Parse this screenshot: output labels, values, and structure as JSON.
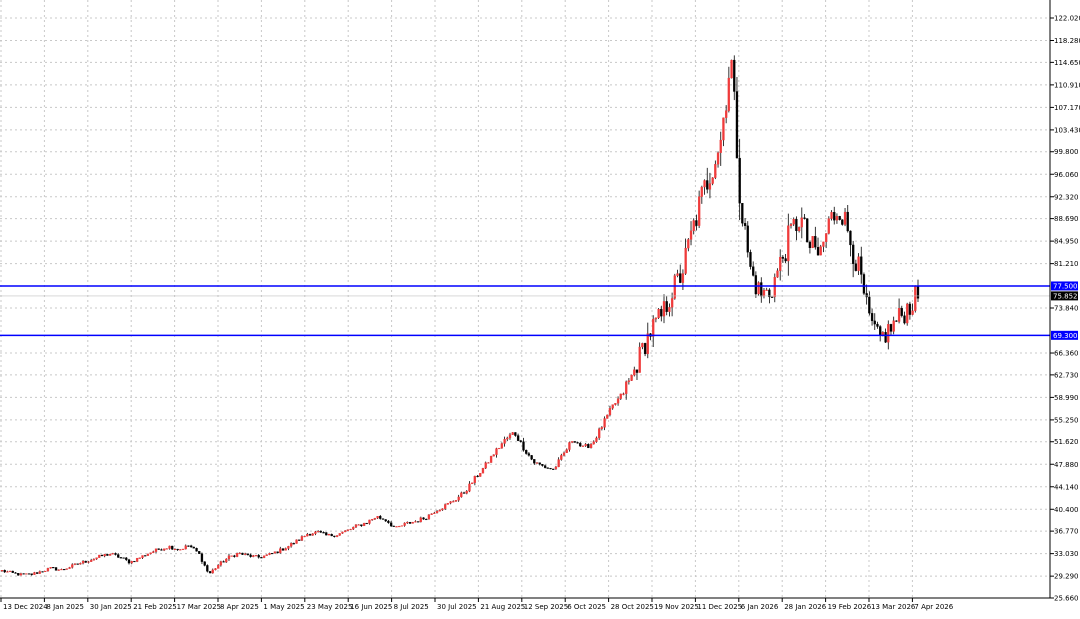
{
  "chart_data": {
    "type": "candlestick",
    "title": "",
    "xlabel": "",
    "ylabel": "",
    "ylim": [
      25.66,
      122.02
    ],
    "grid": true,
    "colors": {
      "bull": "#ef3b3b",
      "bear": "#000000",
      "level_line": "#0000ff",
      "level_label_bg": "#0000ff",
      "current_label_bg": "#000000",
      "grid": "#c8c8c8"
    },
    "y_ticks": [
      "122.020",
      "118.280",
      "114.650",
      "110.910",
      "107.170",
      "103.430",
      "99.800",
      "96.060",
      "92.320",
      "88.690",
      "84.950",
      "81.210",
      "73.840",
      "66.360",
      "62.730",
      "58.990",
      "55.250",
      "51.620",
      "47.880",
      "44.140",
      "40.400",
      "36.770",
      "33.030",
      "29.290",
      "25.660"
    ],
    "x_ticks": [
      "13 Dec 2024",
      "8 Jan 2025",
      "30 Jan 2025",
      "21 Feb 2025",
      "17 Mar 2025",
      "8 Apr 2025",
      "1 May 2025",
      "23 May 2025",
      "16 Jun 2025",
      "8 Jul 2025",
      "30 Jul 2025",
      "21 Aug 2025",
      "12 Sep 2025",
      "6 Oct 2025",
      "28 Oct 2025",
      "19 Nov 2025",
      "11 Dec 2025",
      "6 Jan 2026",
      "28 Jan 2026",
      "19 Feb 2026",
      "13 Mar 2026",
      "7 Apr 2026"
    ],
    "levels": [
      {
        "value": 77.5,
        "label": "77.500"
      },
      {
        "value": 69.3,
        "label": "69.300"
      }
    ],
    "current_price": {
      "value": 75.852,
      "label": "75.852"
    },
    "anchor_prices": [
      30.2,
      29.8,
      29.5,
      29.6,
      30.1,
      30.6,
      30.3,
      30.9,
      31.5,
      32.0,
      32.6,
      33.0,
      32.4,
      31.6,
      32.4,
      33.2,
      33.8,
      34.2,
      33.7,
      34.4,
      33.0,
      29.6,
      31.2,
      32.4,
      33.1,
      32.7,
      32.4,
      32.8,
      33.4,
      34.2,
      35.2,
      36.3,
      36.6,
      36.0,
      36.2,
      36.8,
      37.6,
      38.2,
      39.2,
      38.6,
      37.2,
      38.0,
      38.4,
      39.0,
      40.2,
      41.0,
      42.0,
      43.3,
      45.5,
      47.5,
      49.8,
      51.8,
      53.2,
      50.5,
      48.2,
      47.5,
      47.0,
      49.5,
      52.2,
      50.5,
      51.5,
      54.5,
      57.5,
      59.5,
      62.5,
      67.0,
      70.5,
      72.5,
      76.5,
      79.5,
      86.0,
      92.0,
      97.0,
      102.0,
      116.0,
      91.0,
      80.0,
      76.0,
      76.5,
      81.0,
      86.0,
      89.0,
      84.0,
      82.5,
      88.0,
      91.0,
      86.0,
      80.0,
      72.0,
      68.5,
      70.0,
      72.0,
      74.0,
      75.852
    ]
  }
}
